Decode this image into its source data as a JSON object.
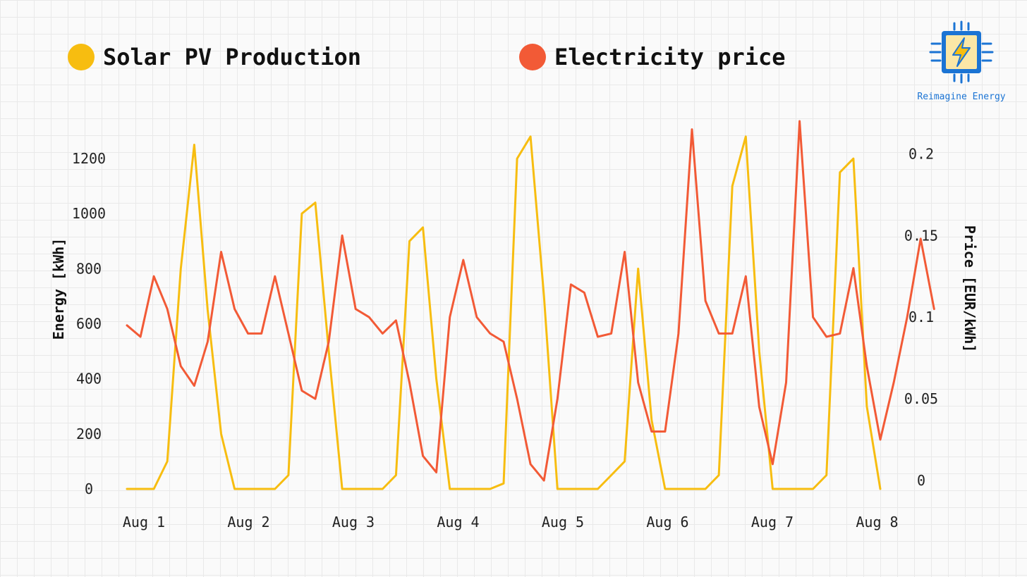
{
  "legend": {
    "solar_label": "Solar PV Production",
    "price_label": "Electricity price"
  },
  "brand": {
    "name": "Reimagine Energy",
    "icon": "lightning-chip-icon"
  },
  "colors": {
    "solar": "#f7bd10",
    "price": "#f25a36",
    "brand": "#1b74d4"
  },
  "chart_data": {
    "type": "line",
    "x_labels": [
      "Aug 1",
      "Aug 2",
      "Aug 3",
      "Aug 4",
      "Aug 5",
      "Aug 6",
      "Aug 7",
      "Aug 8"
    ],
    "ylabel": "Energy [kWh]",
    "y2label": "Price [EUR/kWh]",
    "y_ticks": [
      0,
      200,
      400,
      600,
      800,
      1000,
      1200
    ],
    "y2_ticks": [
      "0",
      "0.05",
      "0.1",
      "0.15",
      "0.2"
    ],
    "ylim": [
      0,
      1300
    ],
    "y2lim": [
      0,
      0.22
    ],
    "grid": true,
    "legend_position": "top",
    "series": [
      {
        "name": "Solar PV Production",
        "axis": "left",
        "step_hours": 3,
        "values": [
          0,
          0,
          0,
          100,
          800,
          1250,
          650,
          200,
          0,
          0,
          0,
          0,
          50,
          1000,
          1040,
          500,
          0,
          0,
          0,
          0,
          50,
          900,
          950,
          400,
          0,
          0,
          0,
          0,
          20,
          1200,
          1280,
          700,
          0,
          0,
          0,
          0,
          50,
          100,
          800,
          250,
          0,
          0,
          0,
          0,
          50,
          1100,
          1280,
          500,
          0,
          0,
          0,
          0,
          50,
          1150,
          1200,
          300,
          0
        ]
      },
      {
        "name": "Electricity price",
        "axis": "right",
        "step_hours": 3,
        "values": [
          0.095,
          0.088,
          0.125,
          0.105,
          0.07,
          0.058,
          0.085,
          0.14,
          0.105,
          0.09,
          0.09,
          0.125,
          0.09,
          0.055,
          0.05,
          0.085,
          0.15,
          0.105,
          0.1,
          0.09,
          0.098,
          0.06,
          0.015,
          0.005,
          0.1,
          0.135,
          0.1,
          0.09,
          0.085,
          0.05,
          0.01,
          0.0,
          0.05,
          0.12,
          0.115,
          0.088,
          0.09,
          0.14,
          0.06,
          0.03,
          0.03,
          0.09,
          0.215,
          0.11,
          0.09,
          0.09,
          0.125,
          0.045,
          0.01,
          0.06,
          0.22,
          0.1,
          0.088,
          0.09,
          0.13,
          0.07,
          0.025,
          0.06,
          0.1,
          0.148,
          0.105
        ]
      }
    ]
  }
}
